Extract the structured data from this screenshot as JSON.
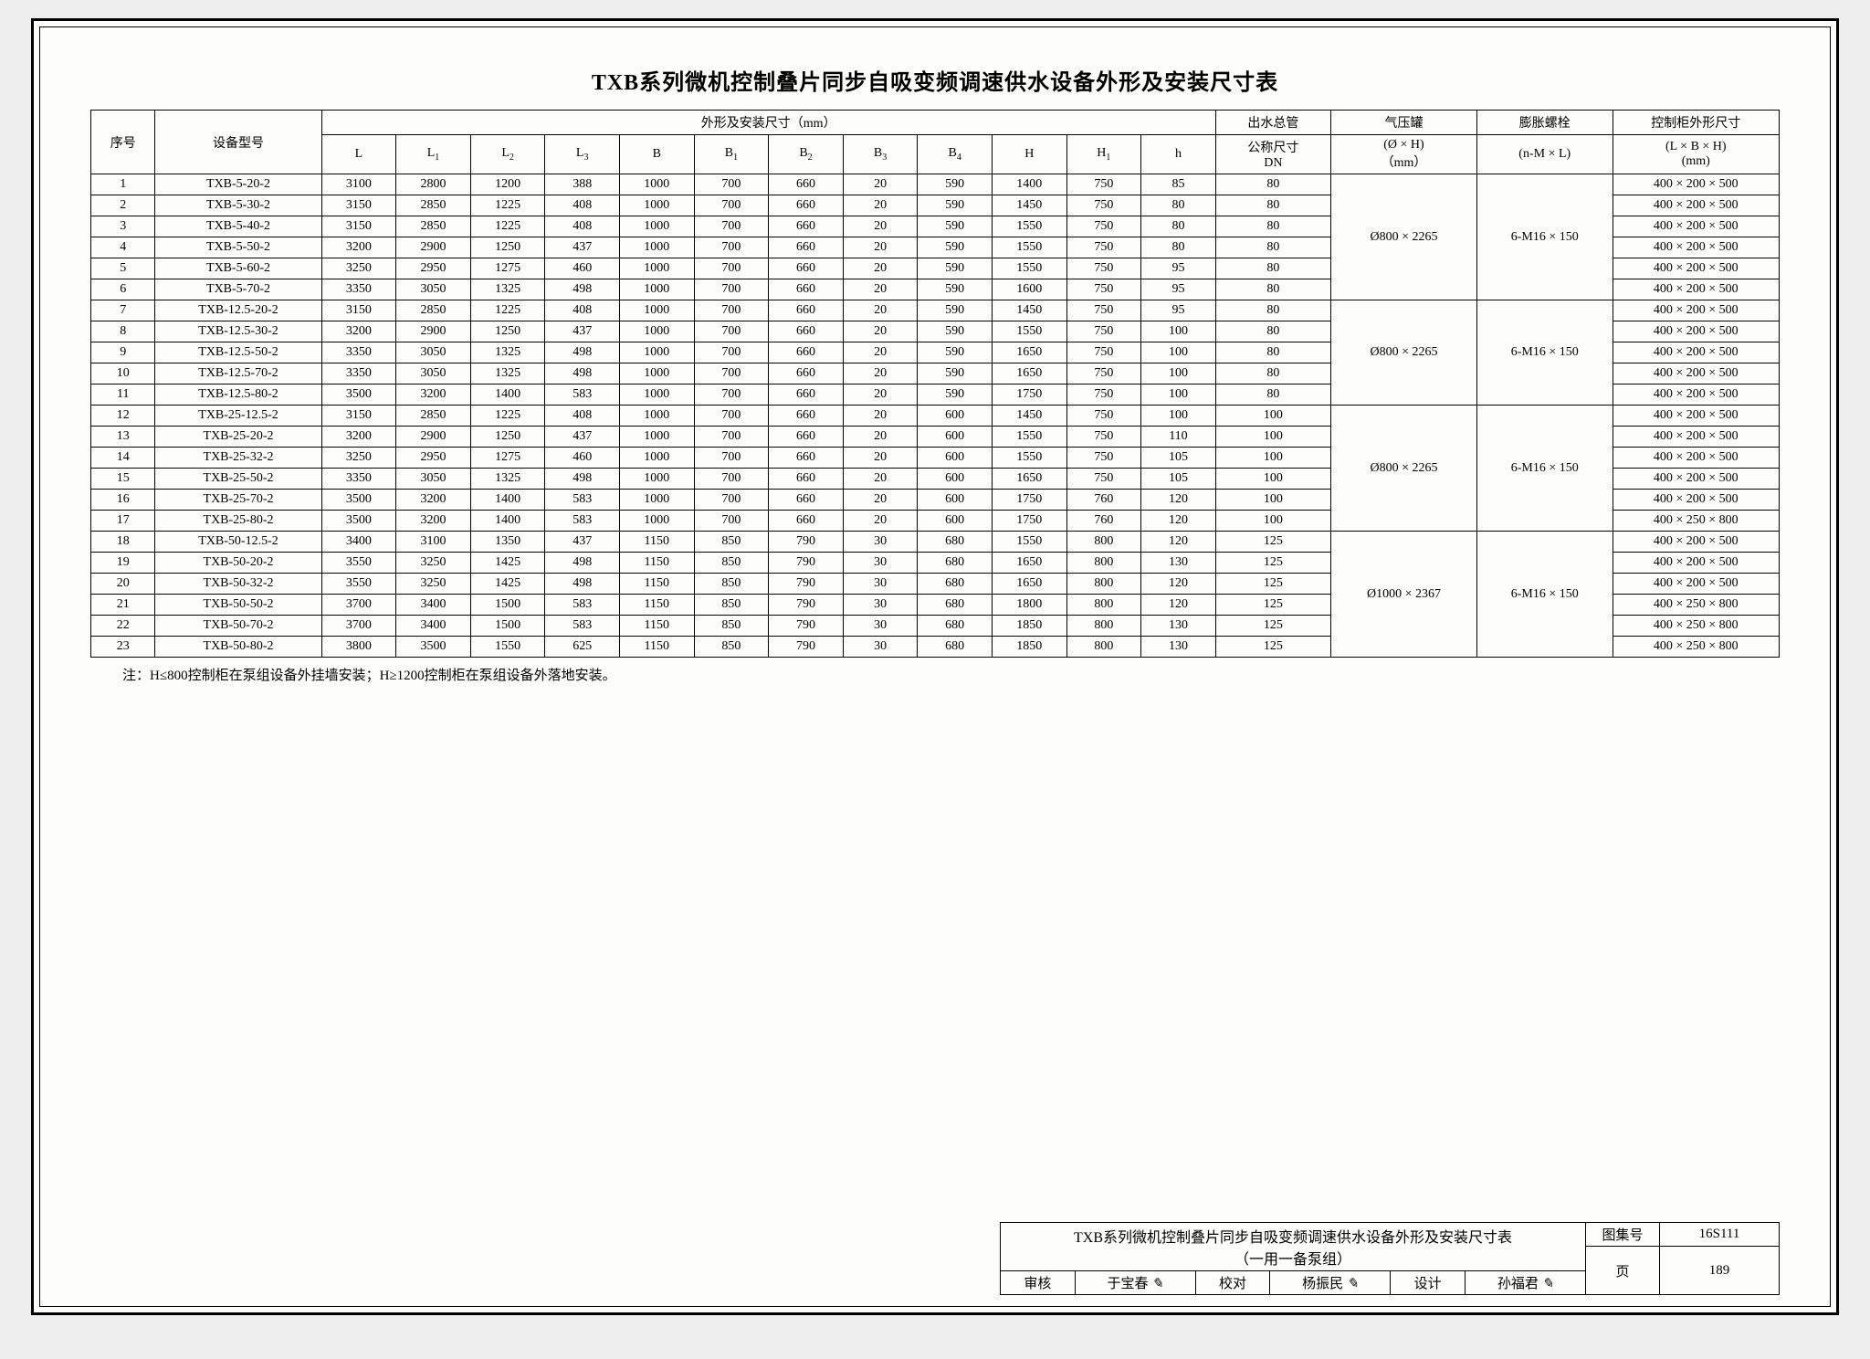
{
  "title": "TXB系列微机控制叠片同步自吸变频调速供水设备外形及安装尺寸表",
  "header": {
    "seq": "序号",
    "model": "设备型号",
    "dims_group": "外形及安装尺寸（mm）",
    "dims": [
      "L",
      "L₁",
      "L₂",
      "L₃",
      "B",
      "B₁",
      "B₂",
      "B₃",
      "B₄",
      "H",
      "H₁",
      "h"
    ],
    "dn_top": "出水总管",
    "dn_mid": "公称尺寸",
    "dn_bot": "DN",
    "qyg_top": "气压罐",
    "qyg_mid": "(Ø × H)",
    "qyg_bot": "（mm）",
    "bolt_top": "膨胀螺栓",
    "bolt_bot": "(n-M × L)",
    "ctrl_top": "控制柜外形尺寸",
    "ctrl_mid": "(L × B × H)",
    "ctrl_bot": "(mm)"
  },
  "groups": [
    {
      "qyg": "Ø800 × 2265",
      "bolt": "6-M16 × 150",
      "rows": [
        {
          "n": "1",
          "m": "TXB-5-20-2",
          "d": [
            "3100",
            "2800",
            "1200",
            "388",
            "1000",
            "700",
            "660",
            "20",
            "590",
            "1400",
            "750",
            "85"
          ],
          "dn": "80",
          "ctrl": "400 × 200 × 500"
        },
        {
          "n": "2",
          "m": "TXB-5-30-2",
          "d": [
            "3150",
            "2850",
            "1225",
            "408",
            "1000",
            "700",
            "660",
            "20",
            "590",
            "1450",
            "750",
            "80"
          ],
          "dn": "80",
          "ctrl": "400 × 200 × 500"
        },
        {
          "n": "3",
          "m": "TXB-5-40-2",
          "d": [
            "3150",
            "2850",
            "1225",
            "408",
            "1000",
            "700",
            "660",
            "20",
            "590",
            "1550",
            "750",
            "80"
          ],
          "dn": "80",
          "ctrl": "400 × 200 × 500"
        },
        {
          "n": "4",
          "m": "TXB-5-50-2",
          "d": [
            "3200",
            "2900",
            "1250",
            "437",
            "1000",
            "700",
            "660",
            "20",
            "590",
            "1550",
            "750",
            "80"
          ],
          "dn": "80",
          "ctrl": "400 × 200 × 500"
        },
        {
          "n": "5",
          "m": "TXB-5-60-2",
          "d": [
            "3250",
            "2950",
            "1275",
            "460",
            "1000",
            "700",
            "660",
            "20",
            "590",
            "1550",
            "750",
            "95"
          ],
          "dn": "80",
          "ctrl": "400 × 200 × 500"
        },
        {
          "n": "6",
          "m": "TXB-5-70-2",
          "d": [
            "3350",
            "3050",
            "1325",
            "498",
            "1000",
            "700",
            "660",
            "20",
            "590",
            "1600",
            "750",
            "95"
          ],
          "dn": "80",
          "ctrl": "400 × 200 × 500"
        }
      ]
    },
    {
      "qyg": "Ø800 × 2265",
      "bolt": "6-M16 × 150",
      "rows": [
        {
          "n": "7",
          "m": "TXB-12.5-20-2",
          "d": [
            "3150",
            "2850",
            "1225",
            "408",
            "1000",
            "700",
            "660",
            "20",
            "590",
            "1450",
            "750",
            "95"
          ],
          "dn": "80",
          "ctrl": "400 × 200 × 500"
        },
        {
          "n": "8",
          "m": "TXB-12.5-30-2",
          "d": [
            "3200",
            "2900",
            "1250",
            "437",
            "1000",
            "700",
            "660",
            "20",
            "590",
            "1550",
            "750",
            "100"
          ],
          "dn": "80",
          "ctrl": "400 × 200 × 500"
        },
        {
          "n": "9",
          "m": "TXB-12.5-50-2",
          "d": [
            "3350",
            "3050",
            "1325",
            "498",
            "1000",
            "700",
            "660",
            "20",
            "590",
            "1650",
            "750",
            "100"
          ],
          "dn": "80",
          "ctrl": "400 × 200 × 500"
        },
        {
          "n": "10",
          "m": "TXB-12.5-70-2",
          "d": [
            "3350",
            "3050",
            "1325",
            "498",
            "1000",
            "700",
            "660",
            "20",
            "590",
            "1650",
            "750",
            "100"
          ],
          "dn": "80",
          "ctrl": "400 × 200 × 500"
        },
        {
          "n": "11",
          "m": "TXB-12.5-80-2",
          "d": [
            "3500",
            "3200",
            "1400",
            "583",
            "1000",
            "700",
            "660",
            "20",
            "590",
            "1750",
            "750",
            "100"
          ],
          "dn": "80",
          "ctrl": "400 × 200 × 500"
        }
      ]
    },
    {
      "qyg": "Ø800 × 2265",
      "bolt": "6-M16 × 150",
      "rows": [
        {
          "n": "12",
          "m": "TXB-25-12.5-2",
          "d": [
            "3150",
            "2850",
            "1225",
            "408",
            "1000",
            "700",
            "660",
            "20",
            "600",
            "1450",
            "750",
            "100"
          ],
          "dn": "100",
          "ctrl": "400 × 200 × 500"
        },
        {
          "n": "13",
          "m": "TXB-25-20-2",
          "d": [
            "3200",
            "2900",
            "1250",
            "437",
            "1000",
            "700",
            "660",
            "20",
            "600",
            "1550",
            "750",
            "110"
          ],
          "dn": "100",
          "ctrl": "400 × 200 × 500"
        },
        {
          "n": "14",
          "m": "TXB-25-32-2",
          "d": [
            "3250",
            "2950",
            "1275",
            "460",
            "1000",
            "700",
            "660",
            "20",
            "600",
            "1550",
            "750",
            "105"
          ],
          "dn": "100",
          "ctrl": "400 × 200 × 500"
        },
        {
          "n": "15",
          "m": "TXB-25-50-2",
          "d": [
            "3350",
            "3050",
            "1325",
            "498",
            "1000",
            "700",
            "660",
            "20",
            "600",
            "1650",
            "750",
            "105"
          ],
          "dn": "100",
          "ctrl": "400 × 200 × 500"
        },
        {
          "n": "16",
          "m": "TXB-25-70-2",
          "d": [
            "3500",
            "3200",
            "1400",
            "583",
            "1000",
            "700",
            "660",
            "20",
            "600",
            "1750",
            "760",
            "120"
          ],
          "dn": "100",
          "ctrl": "400 × 200 × 500"
        },
        {
          "n": "17",
          "m": "TXB-25-80-2",
          "d": [
            "3500",
            "3200",
            "1400",
            "583",
            "1000",
            "700",
            "660",
            "20",
            "600",
            "1750",
            "760",
            "120"
          ],
          "dn": "100",
          "ctrl": "400 × 250 × 800"
        }
      ]
    },
    {
      "qyg": "Ø1000 × 2367",
      "bolt": "6-M16 × 150",
      "rows": [
        {
          "n": "18",
          "m": "TXB-50-12.5-2",
          "d": [
            "3400",
            "3100",
            "1350",
            "437",
            "1150",
            "850",
            "790",
            "30",
            "680",
            "1550",
            "800",
            "120"
          ],
          "dn": "125",
          "ctrl": "400 × 200 × 500"
        },
        {
          "n": "19",
          "m": "TXB-50-20-2",
          "d": [
            "3550",
            "3250",
            "1425",
            "498",
            "1150",
            "850",
            "790",
            "30",
            "680",
            "1650",
            "800",
            "130"
          ],
          "dn": "125",
          "ctrl": "400 × 200 × 500"
        },
        {
          "n": "20",
          "m": "TXB-50-32-2",
          "d": [
            "3550",
            "3250",
            "1425",
            "498",
            "1150",
            "850",
            "790",
            "30",
            "680",
            "1650",
            "800",
            "120"
          ],
          "dn": "125",
          "ctrl": "400 × 200 × 500"
        },
        {
          "n": "21",
          "m": "TXB-50-50-2",
          "d": [
            "3700",
            "3400",
            "1500",
            "583",
            "1150",
            "850",
            "790",
            "30",
            "680",
            "1800",
            "800",
            "120"
          ],
          "dn": "125",
          "ctrl": "400 × 250 × 800"
        },
        {
          "n": "22",
          "m": "TXB-50-70-2",
          "d": [
            "3700",
            "3400",
            "1500",
            "583",
            "1150",
            "850",
            "790",
            "30",
            "680",
            "1850",
            "800",
            "130"
          ],
          "dn": "125",
          "ctrl": "400 × 250 × 800"
        },
        {
          "n": "23",
          "m": "TXB-50-80-2",
          "d": [
            "3800",
            "3500",
            "1550",
            "625",
            "1150",
            "850",
            "790",
            "30",
            "680",
            "1850",
            "800",
            "130"
          ],
          "dn": "125",
          "ctrl": "400 × 250 × 800"
        }
      ]
    }
  ],
  "note": "注：H≤800控制柜在泵组设备外挂墙安装；H≥1200控制柜在泵组设备外落地安装。",
  "titleblock": {
    "name1": "TXB系列微机控制叠片同步自吸变频调速供水设备外形及安装尺寸表",
    "name2": "（一用一备泵组）",
    "tjh_label": "图集号",
    "tjh": "16S111",
    "shenhe": "审核",
    "shenhe_name": "于宝春",
    "jiaodui": "校对",
    "jiaodui_name": "杨振民",
    "sheji": "设计",
    "sheji_name": "孙福君",
    "page_label": "页",
    "page": "189"
  }
}
